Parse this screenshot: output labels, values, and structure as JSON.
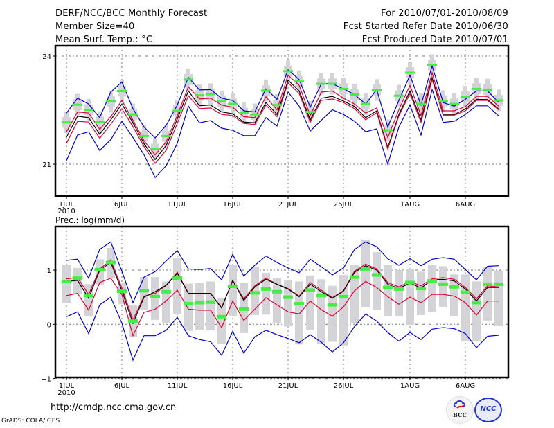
{
  "header": {
    "title": "DERF/NCC/BCC Monthly Forecast",
    "member_size": "Member Size=40",
    "variable_top": "Mean Surf. Temp.: °C",
    "period": "For 2010/07/01-2010/08/09",
    "start_date": "Fcst Started Refer Date 2010/06/30",
    "produced_date": "Fcst Produced Date 2010/07/01"
  },
  "footer": {
    "url": "http://cmdp.ncc.cma.gov.cn",
    "grads": "GrADS: COLA/IGES",
    "logo_bcc": "BCC",
    "logo_ncc": "NCC"
  },
  "colors": {
    "envelope": "#0000cc",
    "spread": "#dd0033",
    "mean": "#000000",
    "box": "#d3d3d8",
    "observed_marker": "#44ee44"
  },
  "chart_data": [
    {
      "type": "line",
      "title": "Mean Surf. Temp.: °C",
      "xlabel": "",
      "ylabel": "",
      "x_tick_labels": [
        "1JUL",
        "6JUL",
        "11JUL",
        "16JUL",
        "21JUL",
        "26JUL",
        "1AUG",
        "6AUG"
      ],
      "x_tick_days": [
        0,
        5,
        10,
        15,
        20,
        25,
        31,
        36
      ],
      "x_sub_label": "2010",
      "y_ticks": [
        21,
        24
      ],
      "ylim": [
        19.9,
        24.3
      ],
      "grid": true,
      "days": 40,
      "series": [
        {
          "name": "max",
          "color_key": "envelope",
          "values": [
            22.42,
            22.83,
            22.67,
            22.29,
            23.0,
            23.28,
            22.54,
            22.03,
            21.73,
            22.08,
            22.64,
            23.41,
            23.06,
            23.07,
            22.83,
            22.77,
            22.48,
            22.45,
            23.09,
            22.8,
            23.62,
            23.35,
            22.58,
            23.23,
            23.23,
            23.09,
            22.93,
            22.67,
            23.07,
            22.03,
            22.77,
            23.47,
            22.64,
            23.73,
            22.71,
            22.61,
            22.8,
            23.03,
            23.03,
            22.72
          ]
        },
        {
          "name": "upper",
          "color_key": "spread",
          "values": [
            21.9,
            22.45,
            22.42,
            21.97,
            22.32,
            22.77,
            22.22,
            21.65,
            21.26,
            21.62,
            22.35,
            23.15,
            22.81,
            22.83,
            22.64,
            22.58,
            22.32,
            22.29,
            22.87,
            22.51,
            23.47,
            23.19,
            22.35,
            23.0,
            23.03,
            22.83,
            22.67,
            22.42,
            22.56,
            21.74,
            22.51,
            23.19,
            22.35,
            23.54,
            22.48,
            22.48,
            22.6,
            22.88,
            22.88,
            22.61
          ]
        },
        {
          "name": "mean",
          "color_key": "mean",
          "values": [
            21.75,
            22.33,
            22.29,
            21.83,
            22.23,
            22.67,
            22.15,
            21.57,
            21.13,
            21.52,
            22.26,
            23.03,
            22.62,
            22.64,
            22.45,
            22.4,
            22.17,
            22.15,
            22.71,
            22.38,
            23.33,
            23.03,
            22.23,
            22.83,
            22.88,
            22.75,
            22.6,
            22.29,
            22.48,
            21.46,
            22.38,
            23.03,
            22.23,
            23.41,
            22.38,
            22.38,
            22.53,
            22.8,
            22.79,
            22.53
          ]
        },
        {
          "name": "lower",
          "color_key": "spread",
          "values": [
            21.58,
            22.19,
            22.17,
            21.72,
            22.11,
            22.54,
            22.04,
            21.49,
            21.02,
            21.39,
            22.13,
            22.9,
            22.54,
            22.56,
            22.38,
            22.35,
            22.13,
            22.1,
            22.64,
            22.32,
            23.26,
            22.96,
            22.17,
            22.77,
            22.81,
            22.71,
            22.54,
            22.23,
            22.43,
            21.42,
            22.34,
            22.96,
            22.16,
            23.35,
            22.36,
            22.36,
            22.48,
            22.77,
            22.77,
            22.51
          ]
        },
        {
          "name": "min",
          "color_key": "envelope",
          "values": [
            21.1,
            21.81,
            21.9,
            21.38,
            21.68,
            22.19,
            21.74,
            21.26,
            20.63,
            20.96,
            21.58,
            22.61,
            22.15,
            22.21,
            22.0,
            21.94,
            21.79,
            21.79,
            22.29,
            22.06,
            23.0,
            22.61,
            21.92,
            22.22,
            22.51,
            22.38,
            22.19,
            21.9,
            21.98,
            21.0,
            22.03,
            22.64,
            21.81,
            23.07,
            22.16,
            22.19,
            22.38,
            22.62,
            22.62,
            22.34
          ]
        },
        {
          "name": "observed",
          "type": "marker",
          "color_key": "observed_marker",
          "values": [
            22.16,
            22.65,
            22.51,
            22.17,
            22.74,
            23.03,
            22.38,
            21.78,
            21.42,
            21.78,
            22.48,
            23.35,
            22.91,
            22.94,
            22.74,
            22.67,
            22.42,
            22.38,
            23.04,
            22.64,
            23.58,
            23.3,
            22.45,
            23.23,
            23.23,
            23.09,
            22.93,
            22.67,
            23.06,
            21.94,
            22.9,
            23.54,
            22.67,
            23.75,
            22.75,
            22.67,
            22.87,
            23.09,
            23.07,
            22.77
          ]
        }
      ],
      "box_halfwidth_whisker": 0.3,
      "box_halfwidth_box": 0.15
    },
    {
      "type": "line",
      "title": "Prec.: log(mm/d)",
      "xlabel": "",
      "ylabel": "",
      "x_tick_labels": [
        "1JUL",
        "6JUL",
        "11JUL",
        "16JUL",
        "21JUL",
        "26JUL",
        "1AUG",
        "6AUG"
      ],
      "x_tick_days": [
        0,
        5,
        10,
        15,
        20,
        25,
        31,
        36
      ],
      "x_sub_label": "2010",
      "y_ticks": [
        -1,
        0,
        1
      ],
      "ylim": [
        -1,
        1.75
      ],
      "grid": true,
      "days": 40,
      "series": [
        {
          "name": "max",
          "color_key": "envelope",
          "values": [
            1.18,
            1.2,
            0.85,
            1.38,
            1.52,
            0.98,
            0.4,
            0.87,
            0.97,
            1.17,
            1.36,
            1.02,
            1.01,
            1.03,
            0.82,
            1.29,
            0.89,
            1.09,
            1.26,
            1.14,
            1.04,
            0.95,
            1.2,
            1.06,
            0.91,
            1.04,
            1.38,
            1.52,
            1.43,
            1.21,
            1.09,
            1.21,
            1.08,
            1.2,
            1.23,
            1.2,
            1.01,
            0.82,
            1.07,
            1.08
          ]
        },
        {
          "name": "upper",
          "color_key": "spread",
          "values": [
            0.84,
            0.86,
            0.55,
            1.02,
            1.18,
            0.67,
            0.08,
            0.52,
            0.57,
            0.72,
            0.96,
            0.57,
            0.57,
            0.57,
            0.31,
            0.8,
            0.47,
            0.71,
            0.85,
            0.74,
            0.66,
            0.52,
            0.77,
            0.63,
            0.49,
            0.62,
            0.98,
            1.11,
            1.02,
            0.77,
            0.69,
            0.79,
            0.71,
            0.84,
            0.86,
            0.83,
            0.68,
            0.47,
            0.71,
            0.69
          ]
        },
        {
          "name": "mean",
          "color_key": "mean",
          "values": [
            0.79,
            0.81,
            0.48,
            1.0,
            1.14,
            0.62,
            0.02,
            0.5,
            0.6,
            0.72,
            0.94,
            0.57,
            0.57,
            0.57,
            0.3,
            0.81,
            0.44,
            0.69,
            0.83,
            0.74,
            0.65,
            0.51,
            0.74,
            0.6,
            0.48,
            0.61,
            0.96,
            1.08,
            1.0,
            0.74,
            0.66,
            0.76,
            0.67,
            0.82,
            0.83,
            0.8,
            0.65,
            0.43,
            0.68,
            0.68
          ]
        },
        {
          "name": "lower",
          "color_key": "spread",
          "values": [
            0.53,
            0.57,
            0.26,
            0.77,
            0.85,
            0.55,
            -0.21,
            0.22,
            0.28,
            0.43,
            0.63,
            0.28,
            0.26,
            0.26,
            -0.06,
            0.43,
            0.07,
            0.28,
            0.49,
            0.36,
            0.23,
            0.19,
            0.43,
            0.27,
            0.15,
            0.32,
            0.62,
            0.79,
            0.68,
            0.51,
            0.37,
            0.5,
            0.4,
            0.55,
            0.55,
            0.52,
            0.4,
            0.17,
            0.43,
            0.43
          ]
        },
        {
          "name": "min",
          "color_key": "envelope",
          "values": [
            0.14,
            0.23,
            -0.17,
            0.36,
            0.5,
            0.02,
            -0.66,
            -0.21,
            -0.21,
            -0.11,
            0.13,
            -0.21,
            -0.28,
            -0.32,
            -0.57,
            -0.13,
            -0.53,
            -0.23,
            -0.11,
            -0.19,
            -0.26,
            -0.34,
            -0.19,
            -0.33,
            -0.51,
            -0.34,
            -0.04,
            0.19,
            0.06,
            -0.15,
            -0.31,
            -0.15,
            -0.28,
            -0.09,
            -0.06,
            -0.08,
            -0.17,
            -0.43,
            -0.22,
            -0.2
          ]
        },
        {
          "name": "observed",
          "type": "marker",
          "color_key": "observed_marker",
          "values": [
            0.79,
            0.85,
            0.53,
            1.01,
            1.14,
            0.61,
            0.06,
            0.62,
            0.51,
            0.6,
            0.85,
            0.38,
            0.4,
            0.41,
            0.14,
            0.7,
            0.28,
            0.58,
            0.65,
            0.6,
            0.5,
            0.38,
            0.63,
            0.53,
            0.36,
            0.51,
            0.87,
            1.02,
            0.91,
            0.68,
            0.65,
            0.77,
            0.66,
            0.8,
            0.74,
            0.69,
            0.59,
            0.4,
            0.74,
            0.74
          ]
        }
      ],
      "box_ranges": [
        [
          1.09,
          0.4
        ],
        [
          1.04,
          0.55
        ],
        [
          0.74,
          0.15
        ],
        [
          1.2,
          0.73
        ],
        [
          1.41,
          0.85
        ],
        [
          0.76,
          0.37
        ],
        [
          0.35,
          -0.23
        ],
        [
          0.87,
          0.27
        ],
        [
          0.87,
          0.08
        ],
        [
          0.79,
          0.02
        ],
        [
          1.22,
          0.19
        ],
        [
          0.75,
          -0.12
        ],
        [
          0.76,
          -0.11
        ],
        [
          0.79,
          -0.1
        ],
        [
          0.49,
          -0.36
        ],
        [
          1.09,
          0.15
        ],
        [
          0.76,
          -0.16
        ],
        [
          1.06,
          0.17
        ],
        [
          0.95,
          0.18
        ],
        [
          0.85,
          0.03
        ],
        [
          0.82,
          -0.04
        ],
        [
          0.79,
          -0.37
        ],
        [
          0.9,
          -0.11
        ],
        [
          0.83,
          -0.36
        ],
        [
          0.71,
          -0.32
        ],
        [
          0.91,
          -0.39
        ],
        [
          1.09,
          0.03
        ],
        [
          1.56,
          0.32
        ],
        [
          1.33,
          0.26
        ],
        [
          1.09,
          0.15
        ],
        [
          1.0,
          0.15
        ],
        [
          1.02,
          -0.01
        ],
        [
          0.97,
          0.17
        ],
        [
          1.09,
          0.22
        ],
        [
          1.07,
          0.32
        ],
        [
          0.92,
          0.15
        ],
        [
          0.92,
          -0.31
        ],
        [
          0.79,
          -0.31
        ],
        [
          1.05,
          0.07
        ],
        [
          0.99,
          -0.03
        ]
      ]
    }
  ]
}
